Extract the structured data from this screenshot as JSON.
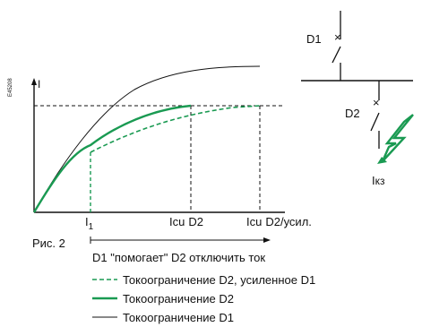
{
  "figure": {
    "code": "E45208",
    "caption": "Рис. 2",
    "y_axis_label": "I",
    "x_ticks": {
      "i1": {
        "main": "I",
        "sub": "1"
      },
      "icu_d2": {
        "main": "Icu",
        "rest": "D2"
      },
      "icu_d2_boost": {
        "main": "Icu",
        "rest": "D2/усил."
      }
    },
    "help_range_label": "D1 \"помогает\" D2 отключить ток",
    "legend": [
      {
        "style": "dashed",
        "color": "#1a9a52",
        "label": "Токоограничение D2, усиленное D1"
      },
      {
        "style": "solid-thick",
        "color": "#1a9a52",
        "label": "Токоограничение D2"
      },
      {
        "style": "solid-thin",
        "color": "#111111",
        "label": "Токоограничение D1"
      }
    ]
  },
  "schematic": {
    "breaker_1": "D1",
    "breaker_2": "D2",
    "fault_current": {
      "main": "I",
      "sub": "кз"
    },
    "lightning_color": "#1a9a52"
  }
}
